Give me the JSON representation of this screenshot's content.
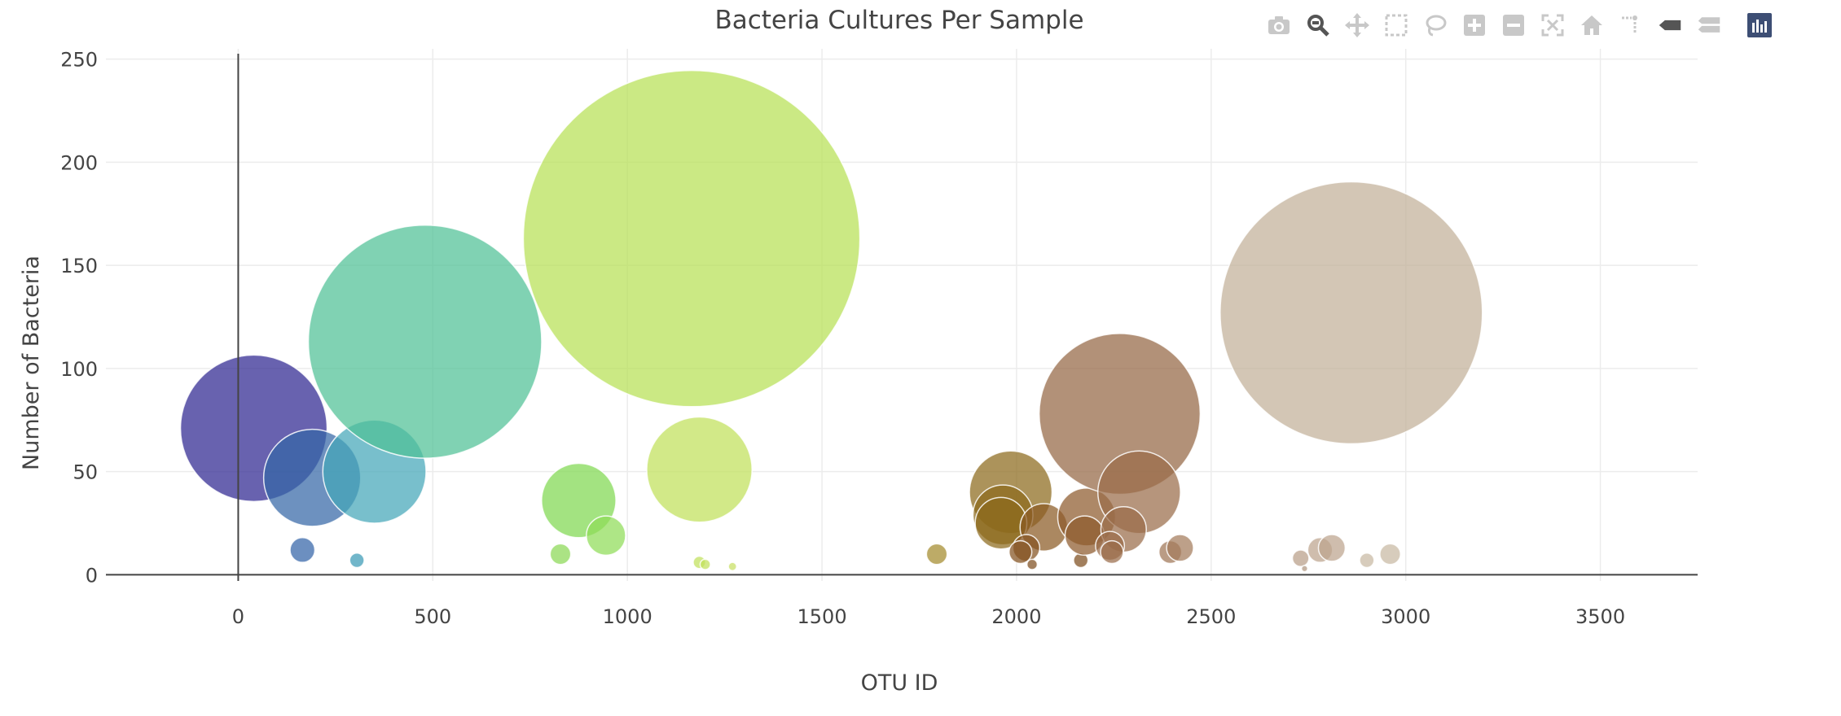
{
  "chart_data": {
    "type": "scatter",
    "subtype": "bubble",
    "title": "Bacteria Cultures Per Sample",
    "xlabel": "OTU ID",
    "ylabel": "Number of Bacteria",
    "xlim": [
      -340,
      3750
    ],
    "ylim": [
      -3,
      255
    ],
    "xticks": [
      0,
      500,
      1000,
      1500,
      2000,
      2500,
      3000,
      3500
    ],
    "yticks": [
      0,
      50,
      100,
      150,
      200,
      250
    ],
    "tick_labels_x": [
      "0",
      "500",
      "1000",
      "1500",
      "2000",
      "2500",
      "3000",
      "3500"
    ],
    "tick_labels_y": [
      "0",
      "50",
      "100",
      "150",
      "200",
      "250"
    ],
    "grid": true,
    "colorscale": "Earth",
    "points": [
      {
        "x": 40,
        "y": 71,
        "size": 71,
        "color": "#2e2590"
      },
      {
        "x": 190,
        "y": 47,
        "size": 47,
        "color": "#3567a6"
      },
      {
        "x": 350,
        "y": 50,
        "size": 50,
        "color": "#44a6b8"
      },
      {
        "x": 165,
        "y": 12,
        "size": 12,
        "color": "#3364a8"
      },
      {
        "x": 305,
        "y": 7,
        "size": 7,
        "color": "#3a9ab5"
      },
      {
        "x": 480,
        "y": 113,
        "size": 113,
        "color": "#4fc096"
      },
      {
        "x": 875,
        "y": 36,
        "size": 36,
        "color": "#7fd850"
      },
      {
        "x": 945,
        "y": 19,
        "size": 19,
        "color": "#8fdc58"
      },
      {
        "x": 828,
        "y": 10,
        "size": 10,
        "color": "#8ad855"
      },
      {
        "x": 1165,
        "y": 163,
        "size": 163,
        "color": "#b7e055"
      },
      {
        "x": 1185,
        "y": 51,
        "size": 51,
        "color": "#c0e05a"
      },
      {
        "x": 1185,
        "y": 6,
        "size": 6,
        "color": "#c0e05a"
      },
      {
        "x": 1200,
        "y": 5,
        "size": 5,
        "color": "#c0e05a"
      },
      {
        "x": 1270,
        "y": 4,
        "size": 4,
        "color": "#c8df63"
      },
      {
        "x": 1795,
        "y": 10,
        "size": 10,
        "color": "#a48a2c"
      },
      {
        "x": 1985,
        "y": 40,
        "size": 40,
        "color": "#8c6a1c"
      },
      {
        "x": 1965,
        "y": 29,
        "size": 29,
        "color": "#8c6a1c"
      },
      {
        "x": 1960,
        "y": 25,
        "size": 25,
        "color": "#8c6a1c"
      },
      {
        "x": 2070,
        "y": 23,
        "size": 23,
        "color": "#8a5a24"
      },
      {
        "x": 2025,
        "y": 13,
        "size": 13,
        "color": "#845220"
      },
      {
        "x": 2010,
        "y": 11,
        "size": 11,
        "color": "#845220"
      },
      {
        "x": 2040,
        "y": 5,
        "size": 5,
        "color": "#7e4d1e"
      },
      {
        "x": 2165,
        "y": 7,
        "size": 7,
        "color": "#7e4d1e"
      },
      {
        "x": 2180,
        "y": 28,
        "size": 28,
        "color": "#8e5a2c"
      },
      {
        "x": 2175,
        "y": 19,
        "size": 19,
        "color": "#8e5a2c"
      },
      {
        "x": 2265,
        "y": 78,
        "size": 78,
        "color": "#946644"
      },
      {
        "x": 2315,
        "y": 40,
        "size": 40,
        "color": "#9a6c4a"
      },
      {
        "x": 2275,
        "y": 22,
        "size": 22,
        "color": "#9a6c4a"
      },
      {
        "x": 2240,
        "y": 14,
        "size": 14,
        "color": "#9a6c4a"
      },
      {
        "x": 2245,
        "y": 11,
        "size": 11,
        "color": "#9a6c4a"
      },
      {
        "x": 2395,
        "y": 11,
        "size": 11,
        "color": "#a07656"
      },
      {
        "x": 2420,
        "y": 13,
        "size": 13,
        "color": "#a47c5c"
      },
      {
        "x": 2730,
        "y": 8,
        "size": 8,
        "color": "#b89e88"
      },
      {
        "x": 2740,
        "y": 3,
        "size": 3,
        "color": "#b09680"
      },
      {
        "x": 2780,
        "y": 12,
        "size": 12,
        "color": "#bca48e"
      },
      {
        "x": 2810,
        "y": 13,
        "size": 13,
        "color": "#bca48e"
      },
      {
        "x": 2860,
        "y": 127,
        "size": 127,
        "color": "#c2b098"
      },
      {
        "x": 2900,
        "y": 7,
        "size": 7,
        "color": "#c8b8a2"
      },
      {
        "x": 2960,
        "y": 10,
        "size": 10,
        "color": "#c8b8a2"
      }
    ]
  },
  "modebar": {
    "icons": [
      "camera-icon",
      "zoom-icon",
      "pan-icon",
      "box-select-icon",
      "lasso-icon",
      "zoom-in-icon",
      "zoom-out-icon",
      "autoscale-icon",
      "reset-axes-icon",
      "spike-lines-icon",
      "hover-closest-icon",
      "hover-compare-icon",
      "plotly-logo-icon"
    ]
  }
}
